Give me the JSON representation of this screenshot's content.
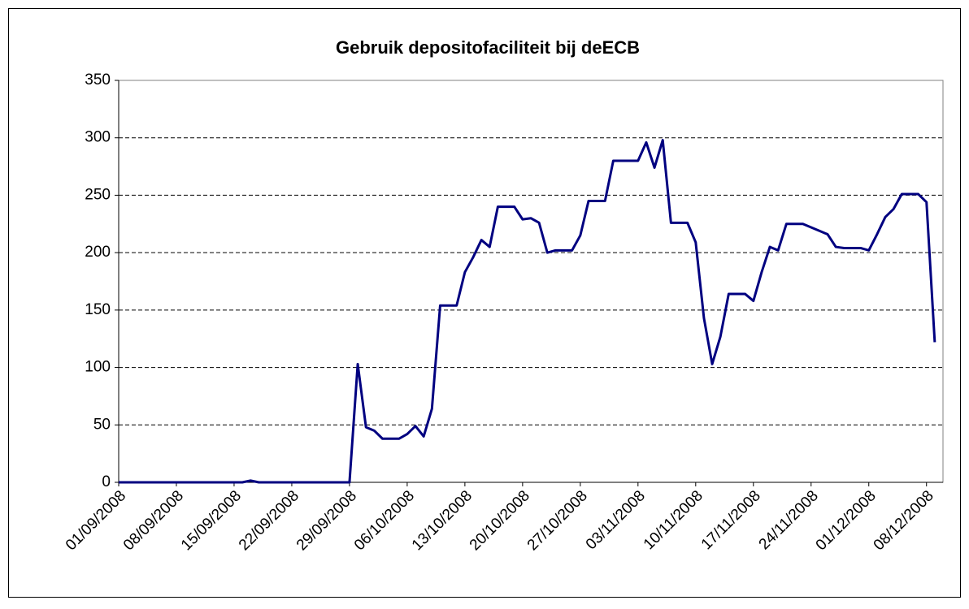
{
  "chart_data": {
    "type": "line",
    "title": "Gebruik depositofaciliteit bij deECB",
    "x": [
      "01/09/2008",
      "16/09/2008",
      "17/09/2008",
      "18/09/2008",
      "29/09/2008",
      "30/09/2008",
      "01/10/2008",
      "02/10/2008",
      "03/10/2008",
      "05/10/2008",
      "06/10/2008",
      "07/10/2008",
      "08/10/2008",
      "09/10/2008",
      "10/10/2008",
      "12/10/2008",
      "13/10/2008",
      "14/10/2008",
      "15/10/2008",
      "16/10/2008",
      "17/10/2008",
      "19/10/2008",
      "20/10/2008",
      "21/10/2008",
      "22/10/2008",
      "23/10/2008",
      "24/10/2008",
      "26/10/2008",
      "27/10/2008",
      "28/10/2008",
      "30/10/2008",
      "31/10/2008",
      "02/11/2008",
      "03/11/2008",
      "04/11/2008",
      "05/11/2008",
      "06/11/2008",
      "07/11/2008",
      "09/11/2008",
      "10/11/2008",
      "11/11/2008",
      "12/11/2008",
      "13/11/2008",
      "14/11/2008",
      "16/11/2008",
      "17/11/2008",
      "18/11/2008",
      "19/11/2008",
      "20/11/2008",
      "21/11/2008",
      "23/11/2008",
      "24/11/2008",
      "25/11/2008",
      "26/11/2008",
      "27/11/2008",
      "28/11/2008",
      "30/11/2008",
      "01/12/2008",
      "02/12/2008",
      "03/12/2008",
      "04/12/2008",
      "05/12/2008",
      "07/12/2008",
      "08/12/2008",
      "09/12/2008"
    ],
    "series": [
      {
        "color": "#000080",
        "values": [
          0,
          0,
          1.5,
          0,
          0,
          103,
          48,
          45,
          38,
          38,
          42,
          49,
          40,
          64,
          154,
          154,
          183,
          196,
          211,
          205,
          240,
          240,
          229,
          230,
          226,
          200,
          202,
          202,
          215,
          245,
          245,
          280,
          280,
          280,
          296,
          274,
          298,
          226,
          226,
          209,
          143,
          103,
          127,
          164,
          164,
          158,
          183,
          205,
          202,
          225,
          225,
          222,
          219,
          216,
          205,
          204,
          204,
          202,
          216,
          231,
          238,
          251,
          251,
          244,
          122
        ]
      }
    ],
    "xlim": [
      "01/09/2008",
      "10/12/2008"
    ],
    "xticks": [
      "01/09/2008",
      "08/09/2008",
      "15/09/2008",
      "22/09/2008",
      "29/09/2008",
      "06/10/2008",
      "13/10/2008",
      "20/10/2008",
      "27/10/2008",
      "03/11/2008",
      "10/11/2008",
      "17/11/2008",
      "24/11/2008",
      "01/12/2008",
      "08/12/2008"
    ],
    "ylim": [
      0,
      350
    ],
    "yticks": [
      0,
      50,
      100,
      150,
      200,
      250,
      300,
      350
    ],
    "grid": true
  }
}
